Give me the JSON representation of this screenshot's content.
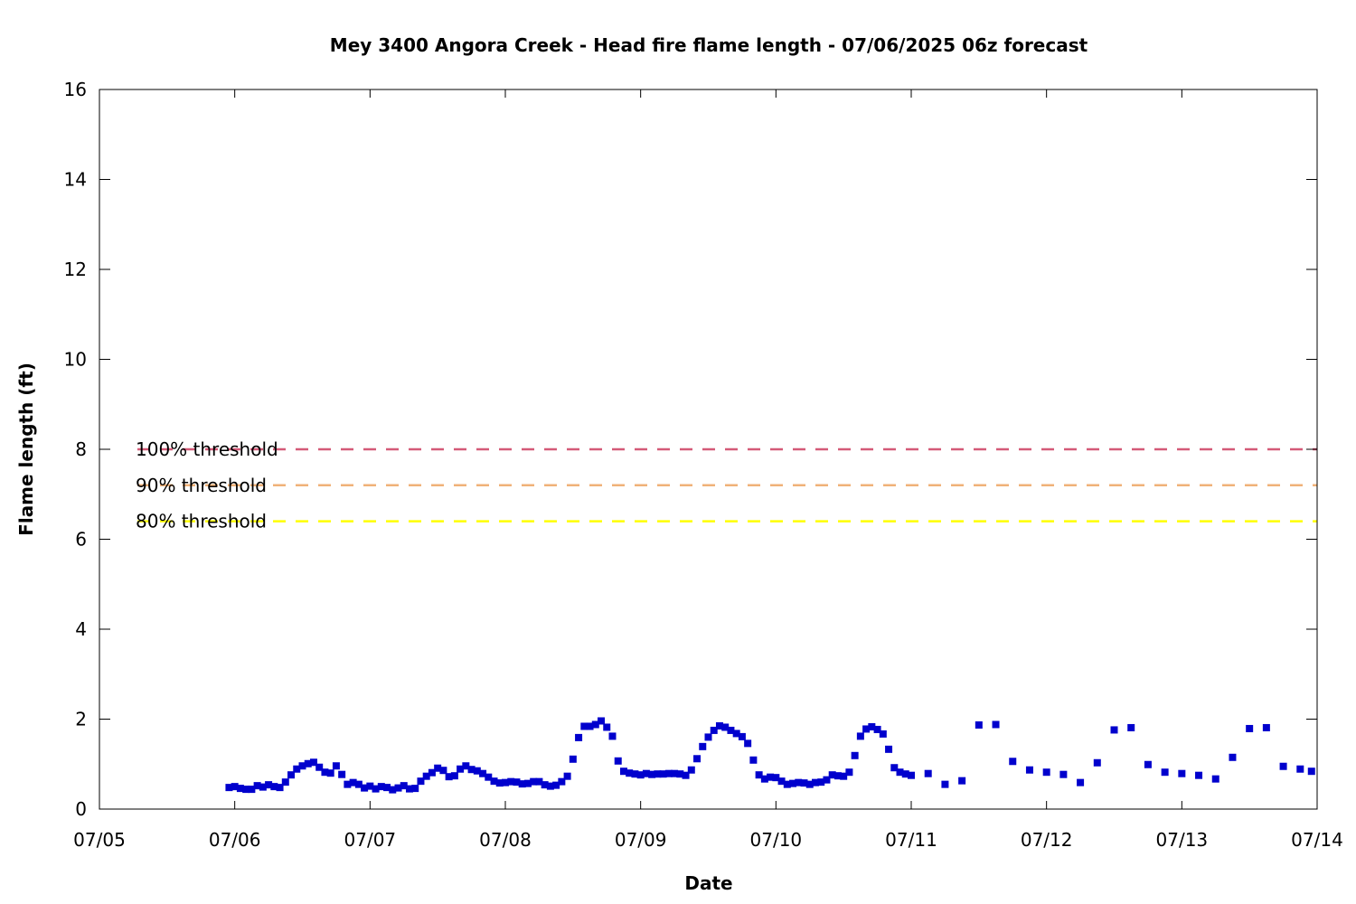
{
  "chart_data": {
    "type": "scatter",
    "title": "Mey 3400 Angora Creek - Head fire flame length - 07/06/2025 06z forecast",
    "xlabel": "Date",
    "ylabel": "Flame length (ft)",
    "xlim": [
      "07/05 00:00",
      "07/14 00:00"
    ],
    "ylim": [
      0,
      16
    ],
    "xticks": [
      "07/05",
      "07/06",
      "07/07",
      "07/08",
      "07/09",
      "07/10",
      "07/11",
      "07/12",
      "07/13",
      "07/14"
    ],
    "yticks": [
      "0",
      "2",
      "4",
      "6",
      "8",
      "10",
      "12",
      "14",
      "16"
    ],
    "grid": false,
    "marker_color": "#0000cd",
    "thresholds": [
      {
        "label": "100% threshold",
        "value": 8.0,
        "color": "#d45a78"
      },
      {
        "label": "90% threshold",
        "value": 7.2,
        "color": "#f0b278"
      },
      {
        "label": "80% threshold",
        "value": 6.4,
        "color": "#ffff00"
      }
    ],
    "series": [
      {
        "points": [
          [
            "07/05 23:00",
            0.48
          ],
          [
            "07/06 00:00",
            0.5
          ],
          [
            "07/06 01:00",
            0.46
          ],
          [
            "07/06 02:00",
            0.44
          ],
          [
            "07/06 03:00",
            0.44
          ],
          [
            "07/06 04:00",
            0.52
          ],
          [
            "07/06 05:00",
            0.49
          ],
          [
            "07/06 06:00",
            0.54
          ],
          [
            "07/06 07:00",
            0.5
          ],
          [
            "07/06 08:00",
            0.48
          ],
          [
            "07/06 09:00",
            0.6
          ],
          [
            "07/06 10:00",
            0.76
          ],
          [
            "07/06 11:00",
            0.89
          ],
          [
            "07/06 12:00",
            0.96
          ],
          [
            "07/06 13:00",
            1.01
          ],
          [
            "07/06 14:00",
            1.04
          ],
          [
            "07/06 15:00",
            0.93
          ],
          [
            "07/06 16:00",
            0.82
          ],
          [
            "07/06 17:00",
            0.8
          ],
          [
            "07/06 18:00",
            0.96
          ],
          [
            "07/06 19:00",
            0.77
          ],
          [
            "07/06 20:00",
            0.55
          ],
          [
            "07/06 21:00",
            0.59
          ],
          [
            "07/06 22:00",
            0.55
          ],
          [
            "07/06 23:00",
            0.47
          ],
          [
            "07/07 00:00",
            0.51
          ],
          [
            "07/07 01:00",
            0.45
          ],
          [
            "07/07 02:00",
            0.5
          ],
          [
            "07/07 03:00",
            0.48
          ],
          [
            "07/07 04:00",
            0.43
          ],
          [
            "07/07 05:00",
            0.47
          ],
          [
            "07/07 06:00",
            0.52
          ],
          [
            "07/07 07:00",
            0.45
          ],
          [
            "07/07 08:00",
            0.46
          ],
          [
            "07/07 09:00",
            0.62
          ],
          [
            "07/07 10:00",
            0.73
          ],
          [
            "07/07 11:00",
            0.81
          ],
          [
            "07/07 12:00",
            0.91
          ],
          [
            "07/07 13:00",
            0.86
          ],
          [
            "07/07 14:00",
            0.72
          ],
          [
            "07/07 15:00",
            0.74
          ],
          [
            "07/07 16:00",
            0.89
          ],
          [
            "07/07 17:00",
            0.96
          ],
          [
            "07/07 18:00",
            0.88
          ],
          [
            "07/07 19:00",
            0.85
          ],
          [
            "07/07 20:00",
            0.79
          ],
          [
            "07/07 21:00",
            0.71
          ],
          [
            "07/07 22:00",
            0.62
          ],
          [
            "07/07 23:00",
            0.58
          ],
          [
            "07/08 00:00",
            0.59
          ],
          [
            "07/08 01:00",
            0.61
          ],
          [
            "07/08 02:00",
            0.6
          ],
          [
            "07/08 03:00",
            0.56
          ],
          [
            "07/08 04:00",
            0.57
          ],
          [
            "07/08 05:00",
            0.61
          ],
          [
            "07/08 06:00",
            0.61
          ],
          [
            "07/08 07:00",
            0.54
          ],
          [
            "07/08 08:00",
            0.51
          ],
          [
            "07/08 09:00",
            0.53
          ],
          [
            "07/08 10:00",
            0.61
          ],
          [
            "07/08 11:00",
            0.73
          ],
          [
            "07/08 12:00",
            1.11
          ],
          [
            "07/08 13:00",
            1.59
          ],
          [
            "07/08 14:00",
            1.84
          ],
          [
            "07/08 15:00",
            1.84
          ],
          [
            "07/08 16:00",
            1.88
          ],
          [
            "07/08 17:00",
            1.96
          ],
          [
            "07/08 18:00",
            1.82
          ],
          [
            "07/08 19:00",
            1.62
          ],
          [
            "07/08 20:00",
            1.07
          ],
          [
            "07/08 21:00",
            0.84
          ],
          [
            "07/08 22:00",
            0.8
          ],
          [
            "07/08 23:00",
            0.78
          ],
          [
            "07/09 00:00",
            0.76
          ],
          [
            "07/09 01:00",
            0.79
          ],
          [
            "07/09 02:00",
            0.77
          ],
          [
            "07/09 03:00",
            0.78
          ],
          [
            "07/09 04:00",
            0.78
          ],
          [
            "07/09 05:00",
            0.79
          ],
          [
            "07/09 06:00",
            0.79
          ],
          [
            "07/09 07:00",
            0.78
          ],
          [
            "07/09 08:00",
            0.75
          ],
          [
            "07/09 09:00",
            0.87
          ],
          [
            "07/09 10:00",
            1.12
          ],
          [
            "07/09 11:00",
            1.39
          ],
          [
            "07/09 12:00",
            1.6
          ],
          [
            "07/09 13:00",
            1.75
          ],
          [
            "07/09 14:00",
            1.85
          ],
          [
            "07/09 15:00",
            1.82
          ],
          [
            "07/09 16:00",
            1.75
          ],
          [
            "07/09 17:00",
            1.68
          ],
          [
            "07/09 18:00",
            1.61
          ],
          [
            "07/09 19:00",
            1.46
          ],
          [
            "07/09 20:00",
            1.09
          ],
          [
            "07/09 21:00",
            0.76
          ],
          [
            "07/09 22:00",
            0.67
          ],
          [
            "07/09 23:00",
            0.71
          ],
          [
            "07/10 00:00",
            0.7
          ],
          [
            "07/10 01:00",
            0.62
          ],
          [
            "07/10 02:00",
            0.55
          ],
          [
            "07/10 03:00",
            0.57
          ],
          [
            "07/10 04:00",
            0.59
          ],
          [
            "07/10 05:00",
            0.58
          ],
          [
            "07/10 06:00",
            0.55
          ],
          [
            "07/10 07:00",
            0.59
          ],
          [
            "07/10 08:00",
            0.6
          ],
          [
            "07/10 09:00",
            0.65
          ],
          [
            "07/10 10:00",
            0.76
          ],
          [
            "07/10 11:00",
            0.74
          ],
          [
            "07/10 12:00",
            0.73
          ],
          [
            "07/10 13:00",
            0.82
          ],
          [
            "07/10 14:00",
            1.19
          ],
          [
            "07/10 15:00",
            1.62
          ],
          [
            "07/10 16:00",
            1.78
          ],
          [
            "07/10 17:00",
            1.83
          ],
          [
            "07/10 18:00",
            1.77
          ],
          [
            "07/10 19:00",
            1.67
          ],
          [
            "07/10 20:00",
            1.33
          ],
          [
            "07/10 21:00",
            0.92
          ],
          [
            "07/10 22:00",
            0.82
          ],
          [
            "07/10 23:00",
            0.78
          ],
          [
            "07/11 00:00",
            0.75
          ],
          [
            "07/11 03:00",
            0.79
          ],
          [
            "07/11 06:00",
            0.55
          ],
          [
            "07/11 09:00",
            0.63
          ],
          [
            "07/11 12:00",
            1.87
          ],
          [
            "07/11 15:00",
            1.88
          ],
          [
            "07/11 18:00",
            1.06
          ],
          [
            "07/11 21:00",
            0.87
          ],
          [
            "07/12 00:00",
            0.82
          ],
          [
            "07/12 03:00",
            0.77
          ],
          [
            "07/12 06:00",
            0.59
          ],
          [
            "07/12 09:00",
            1.03
          ],
          [
            "07/12 12:00",
            1.76
          ],
          [
            "07/12 15:00",
            1.81
          ],
          [
            "07/12 18:00",
            0.99
          ],
          [
            "07/12 21:00",
            0.82
          ],
          [
            "07/13 00:00",
            0.79
          ],
          [
            "07/13 03:00",
            0.75
          ],
          [
            "07/13 06:00",
            0.67
          ],
          [
            "07/13 09:00",
            1.15
          ],
          [
            "07/13 12:00",
            1.79
          ],
          [
            "07/13 15:00",
            1.81
          ],
          [
            "07/13 18:00",
            0.95
          ],
          [
            "07/13 21:00",
            0.89
          ],
          [
            "07/13 23:00",
            0.84
          ]
        ]
      }
    ]
  }
}
